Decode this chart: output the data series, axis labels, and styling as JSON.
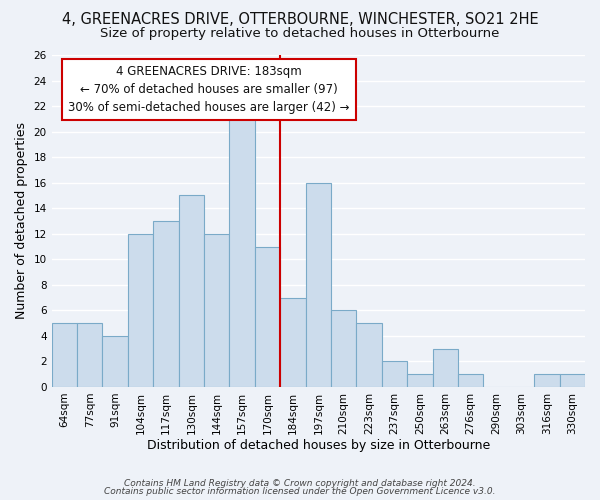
{
  "title_line1": "4, GREENACRES DRIVE, OTTERBOURNE, WINCHESTER, SO21 2HE",
  "title_line2": "Size of property relative to detached houses in Otterbourne",
  "xlabel": "Distribution of detached houses by size in Otterbourne",
  "ylabel": "Number of detached properties",
  "footer_line1": "Contains HM Land Registry data © Crown copyright and database right 2024.",
  "footer_line2": "Contains public sector information licensed under the Open Government Licence v3.0.",
  "bin_labels": [
    "64sqm",
    "77sqm",
    "91sqm",
    "104sqm",
    "117sqm",
    "130sqm",
    "144sqm",
    "157sqm",
    "170sqm",
    "184sqm",
    "197sqm",
    "210sqm",
    "223sqm",
    "237sqm",
    "250sqm",
    "263sqm",
    "276sqm",
    "290sqm",
    "303sqm",
    "316sqm",
    "330sqm"
  ],
  "bar_heights": [
    5,
    5,
    4,
    12,
    13,
    15,
    12,
    21,
    11,
    7,
    16,
    6,
    5,
    2,
    1,
    3,
    1,
    0,
    0,
    1,
    1
  ],
  "bar_color": "#ccdcec",
  "bar_edge_color": "#7aaac8",
  "reference_line_color": "#cc0000",
  "ylim": [
    0,
    26
  ],
  "yticks": [
    0,
    2,
    4,
    6,
    8,
    10,
    12,
    14,
    16,
    18,
    20,
    22,
    24,
    26
  ],
  "annotation_title": "4 GREENACRES DRIVE: 183sqm",
  "annotation_line1": "← 70% of detached houses are smaller (97)",
  "annotation_line2": "30% of semi-detached houses are larger (42) →",
  "annotation_box_edge_color": "#cc0000",
  "background_color": "#eef2f8",
  "grid_color": "#ffffff",
  "title_fontsize": 10.5,
  "subtitle_fontsize": 9.5,
  "axis_label_fontsize": 9,
  "tick_fontsize": 7.5,
  "annotation_fontsize": 8.5,
  "footer_fontsize": 6.5
}
